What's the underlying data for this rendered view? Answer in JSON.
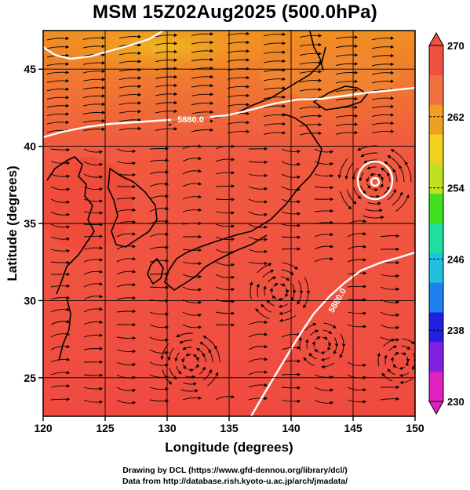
{
  "title": "MSM 15Z02Aug2025 (500.0hPa)",
  "axes": {
    "xlabel": "Longitude (degrees)",
    "ylabel": "Latitude  (degrees)",
    "x_ticks": [
      "120",
      "125",
      "130",
      "135",
      "140",
      "145",
      "150"
    ],
    "y_ticks": [
      "25",
      "30",
      "35",
      "40",
      "45"
    ],
    "xlim": [
      120,
      150
    ],
    "ylim": [
      22.5,
      47.5
    ]
  },
  "colorbar": {
    "ticks": [
      "270",
      "262",
      "254",
      "246",
      "238",
      "230"
    ],
    "range": [
      230,
      270
    ],
    "colors": [
      "#e020c0",
      "#8020e0",
      "#2020e0",
      "#2080f0",
      "#20c0e0",
      "#20e0a0",
      "#40e020",
      "#c0e020",
      "#f0d020",
      "#f0a020",
      "#f07040",
      "#f05040"
    ]
  },
  "contours": [
    {
      "label": "5880.0",
      "color": "#ffffff"
    },
    {
      "label": "5880.0",
      "color": "#ffffff"
    }
  ],
  "credits": {
    "line1": "Drawing by DCL (https://www.gfd-dennou.org/library/dcl/)",
    "line2": "Data from http://database.rish.kyoto-u.ac.jp/arch/jmadata/"
  }
}
